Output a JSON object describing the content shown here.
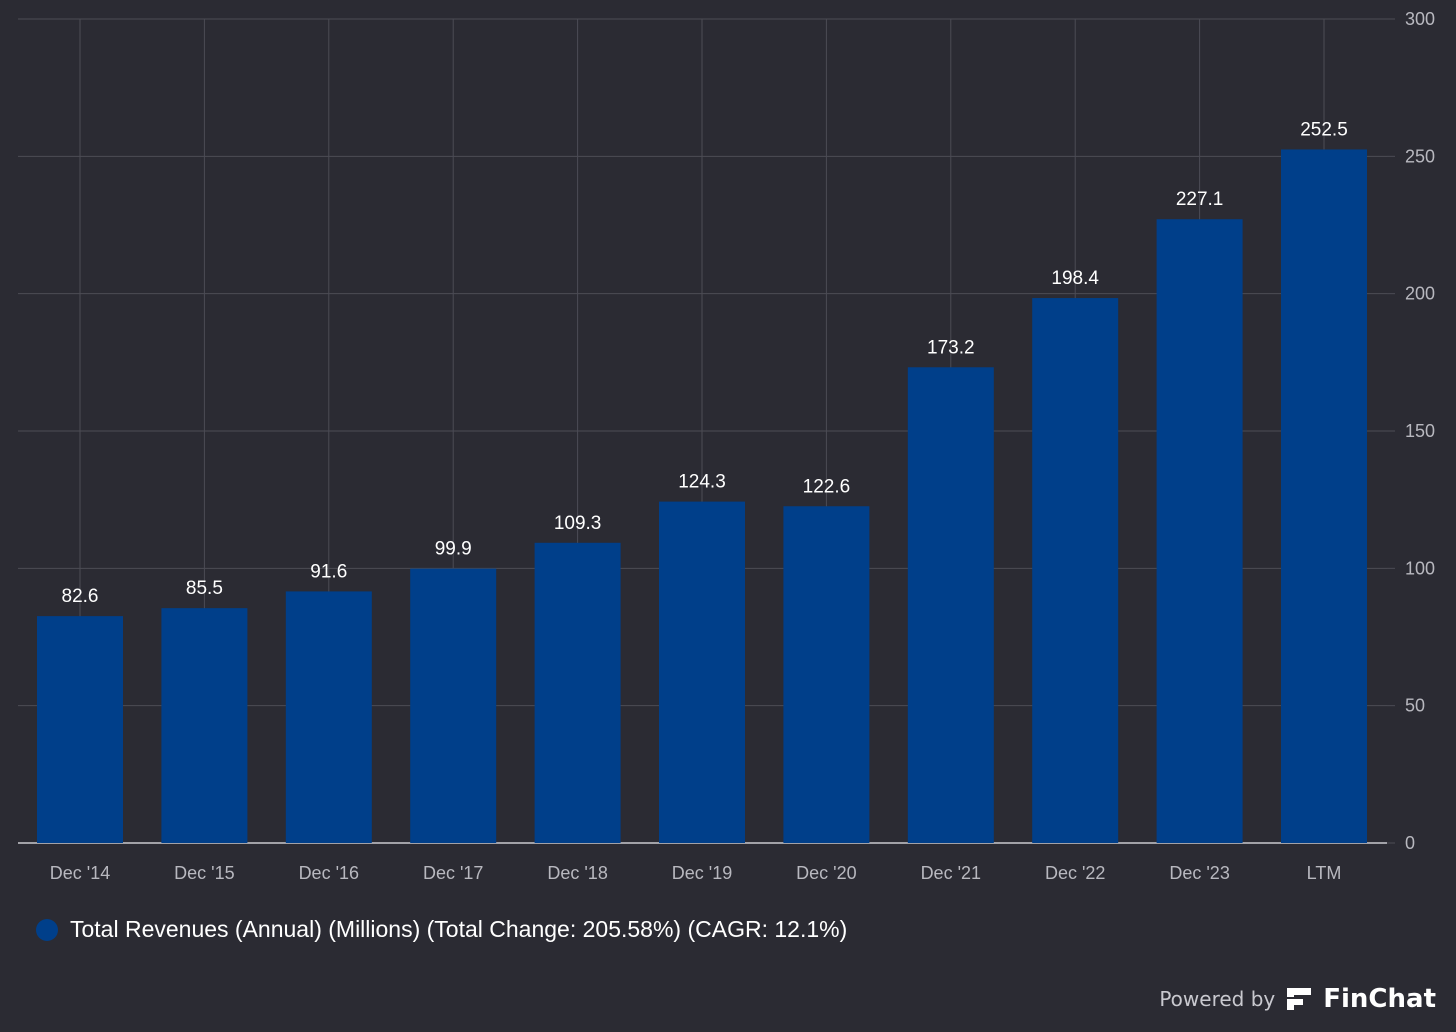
{
  "theme": {
    "background": "#2b2b33",
    "bar_color": "#003f8a",
    "grid_color": "#4c4c55",
    "axis_line_color": "#c9c9cf",
    "tick_label_color": "#b8b8bf",
    "data_label_color": "#ffffff",
    "legend_text_color": "#ffffff",
    "branding_text_color": "#c9c9cf"
  },
  "chart_data": {
    "type": "bar",
    "categories": [
      "Dec '14",
      "Dec '15",
      "Dec '16",
      "Dec '17",
      "Dec '18",
      "Dec '19",
      "Dec '20",
      "Dec '21",
      "Dec '22",
      "Dec '23",
      "LTM"
    ],
    "series": [
      {
        "name": "Total Revenues (Annual) (Millions) (Total Change: 205.58%) (CAGR: 12.1%)",
        "values": [
          82.6,
          85.5,
          91.6,
          99.9,
          109.3,
          124.3,
          122.6,
          173.2,
          198.4,
          227.1,
          252.5
        ],
        "data_labels": [
          "82.6",
          "85.5",
          "91.6",
          "99.9",
          "109.3",
          "124.3",
          "122.6",
          "173.2",
          "198.4",
          "227.1",
          "252.5"
        ]
      }
    ],
    "ylim": [
      0,
      300
    ],
    "y_ticks": [
      "0",
      "50",
      "100",
      "150",
      "200",
      "250",
      "300"
    ],
    "y_axis_position": "right",
    "grid": true,
    "legend_position": "bottom-left"
  },
  "branding": {
    "powered_by": "Powered by",
    "logo_icon": "finchat-logo-icon",
    "name": "FinChat"
  }
}
